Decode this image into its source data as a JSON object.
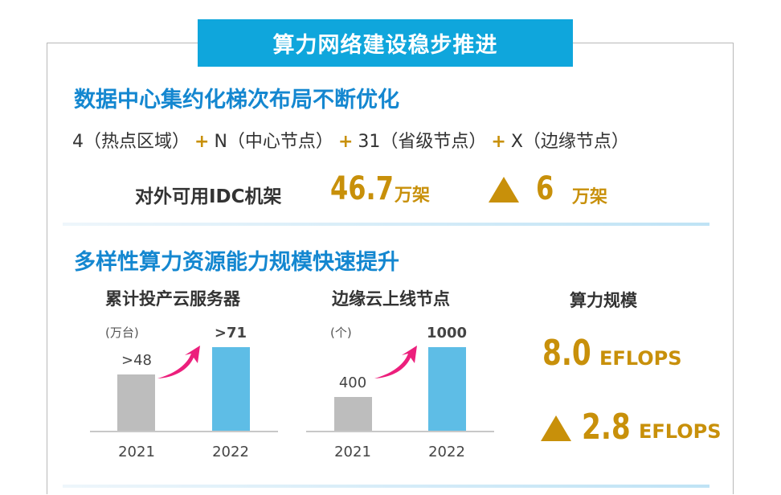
{
  "banner_title": "算力网络建设稳步推进",
  "section1": {
    "title": "数据中心集约化梯次布局不断优化",
    "formula": [
      {
        "num": "4",
        "label": "（热点区域）"
      },
      {
        "num": "N",
        "label": "（中心节点）"
      },
      {
        "num": "31",
        "label": "（省级节点）"
      },
      {
        "num": "X",
        "label": "（边缘节点）"
      }
    ],
    "plus": "+",
    "idc_label": "对外可用IDC机架",
    "idc_value": "46.7",
    "idc_unit": "万架",
    "idc_increase": "6",
    "idc_increase_unit": "万架"
  },
  "section2": {
    "title": "多样性算力资源能力规模快速提升",
    "compute_title": "算力规模",
    "compute_value": "8.0",
    "compute_unit": "EFLOPS",
    "compute_increase": "2.8",
    "compute_increase_unit": "EFLOPS"
  },
  "colors": {
    "banner": "#0fa6dc",
    "heading": "#1487d0",
    "gold": "#c8900a",
    "bar_2021": "#bdbdbd",
    "bar_2022": "#5ebde6",
    "arrow": "#ec1f7c"
  },
  "chart_data": [
    {
      "type": "bar",
      "title": "累计投产云服务器",
      "unit": "(万台)",
      "categories": [
        "2021",
        "2022"
      ],
      "values": [
        48,
        71
      ],
      "value_labels": [
        ">48",
        ">71"
      ]
    },
    {
      "type": "bar",
      "title": "边缘云上线节点",
      "unit": "(个)",
      "categories": [
        "2021",
        "2022"
      ],
      "values": [
        400,
        1000
      ],
      "value_labels": [
        "400",
        "1000"
      ]
    }
  ]
}
